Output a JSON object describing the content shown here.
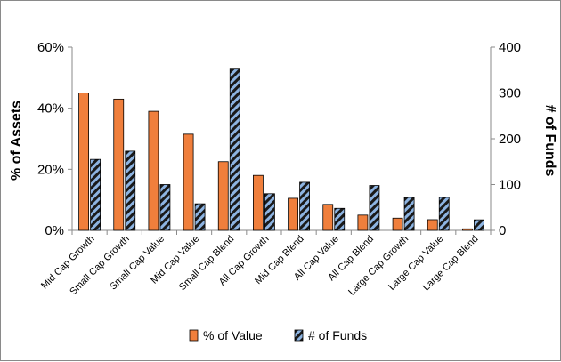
{
  "chart_data": {
    "type": "bar",
    "categories": [
      "Mid Cap Growth",
      "Small Cap Growth",
      "Small Cap Value",
      "Mid Cap Value",
      "Small Cap Blend",
      "All Cap Growth",
      "Mid Cap Blend",
      "All Cap Value",
      "All Cap Blend",
      "Large Cap Growth",
      "Large Cap Value",
      "Large Cap Blend"
    ],
    "series": [
      {
        "name": "% of Value",
        "axis": "left",
        "color": "#F07F3C",
        "values": [
          45,
          43,
          39,
          31.5,
          22.5,
          18,
          10.5,
          8.5,
          5,
          4,
          3.5,
          0.5
        ]
      },
      {
        "name": "# of Funds",
        "axis": "right",
        "color": "#8DB4E2",
        "pattern": "diagonal-stripes",
        "values": [
          155,
          173,
          100,
          58,
          352,
          80,
          105,
          48,
          98,
          72,
          72,
          23
        ]
      }
    ],
    "ylabel": "% of Assets",
    "y2label": "# of Funds",
    "ylim": [
      0,
      60
    ],
    "y2lim": [
      0,
      400
    ],
    "yticks": [
      "0%",
      "20%",
      "40%",
      "60%"
    ],
    "y2ticks": [
      "0",
      "100",
      "200",
      "300",
      "400"
    ],
    "legend_position": "bottom",
    "grid": false
  }
}
